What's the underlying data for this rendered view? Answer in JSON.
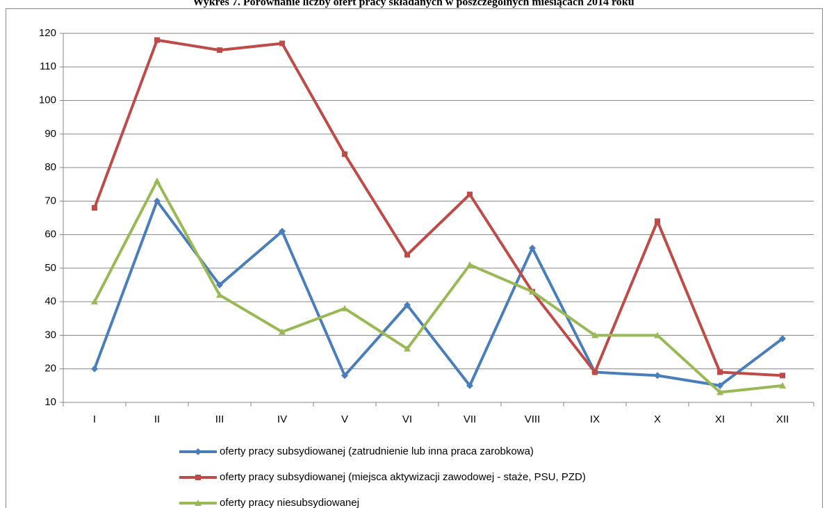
{
  "chart_data": {
    "type": "line",
    "title": "Wykres 7. Porównanie liczby ofert pracy składanych w poszczególnych miesiącach 2014 roku",
    "categories": [
      "I",
      "II",
      "III",
      "IV",
      "V",
      "VI",
      "VII",
      "VIII",
      "IX",
      "X",
      "XI",
      "XII"
    ],
    "series": [
      {
        "name": "oferty pracy subsydiowanej (zatrudnienie lub inna praca zarobkowa)",
        "color": "#4a7ebb",
        "marker": "diamond",
        "values": [
          20,
          70,
          45,
          61,
          18,
          39,
          15,
          56,
          19,
          18,
          15,
          29
        ]
      },
      {
        "name": "oferty pracy subsydiowanej (miejsca aktywizacji zawodowej - staże, PSU, PZD)",
        "color": "#be4b48",
        "marker": "square",
        "values": [
          68,
          118,
          115,
          117,
          84,
          54,
          72,
          43,
          19,
          64,
          19,
          18
        ]
      },
      {
        "name": "oferty pracy niesubsydiowanej",
        "color": "#98b954",
        "marker": "triangle",
        "values": [
          40,
          76,
          42,
          31,
          38,
          26,
          51,
          43,
          30,
          30,
          13,
          15
        ]
      }
    ],
    "ylim": [
      10,
      120
    ],
    "yticks": [
      10,
      20,
      30,
      40,
      50,
      60,
      70,
      80,
      90,
      100,
      110,
      120
    ],
    "grid": true,
    "legend": "bottom"
  }
}
